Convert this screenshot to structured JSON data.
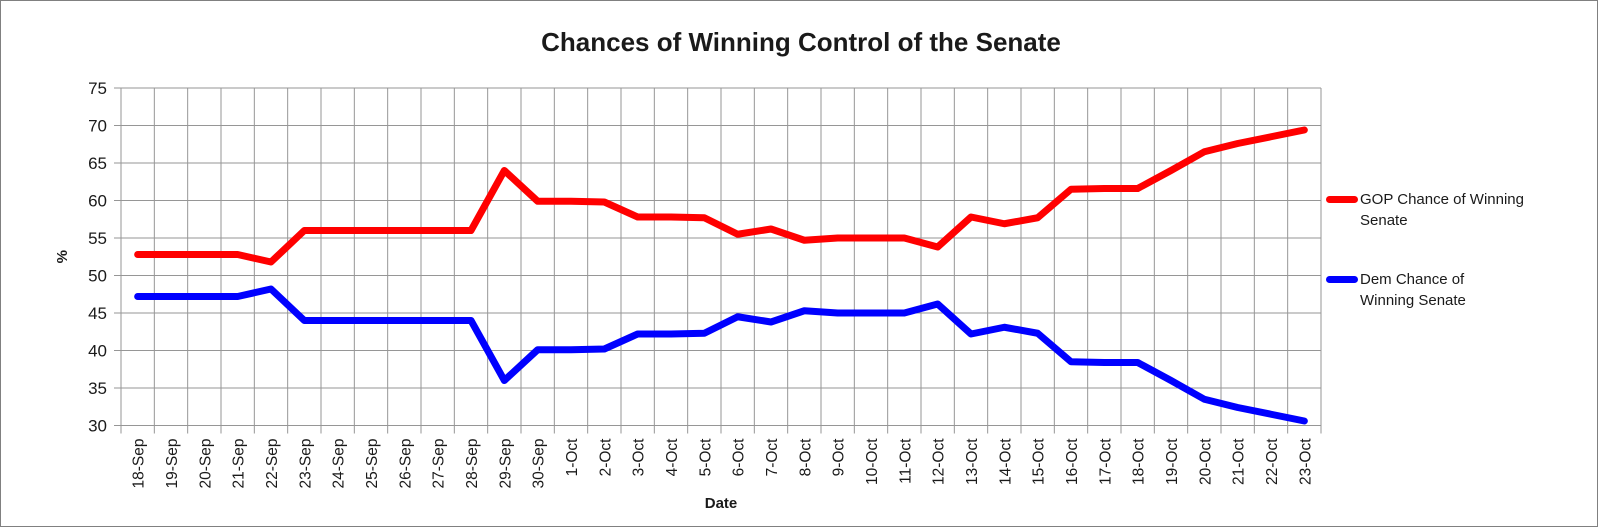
{
  "chart_data": {
    "type": "line",
    "title": "Chances of Winning Control of the Senate",
    "xlabel": "Date",
    "ylabel": "%",
    "ylim": [
      30,
      75
    ],
    "ytick_step": 5,
    "ytick_labels": [
      "75",
      "70",
      "65",
      "60",
      "55",
      "50",
      "45",
      "40",
      "35",
      "30"
    ],
    "grid": true,
    "legend_position": "right",
    "x": [
      "18-Sep",
      "19-Sep",
      "20-Sep",
      "21-Sep",
      "22-Sep",
      "23-Sep",
      "24-Sep",
      "25-Sep",
      "26-Sep",
      "27-Sep",
      "28-Sep",
      "29-Sep",
      "30-Sep",
      "1-Oct",
      "2-Oct",
      "3-Oct",
      "4-Oct",
      "5-Oct",
      "6-Oct",
      "7-Oct",
      "8-Oct",
      "9-Oct",
      "10-Oct",
      "11-Oct",
      "12-Oct",
      "13-Oct",
      "14-Oct",
      "15-Oct",
      "16-Oct",
      "17-Oct",
      "18-Oct",
      "19-Oct",
      "20-Oct",
      "21-Oct",
      "22-Oct",
      "23-Oct"
    ],
    "series": [
      {
        "name": "GOP Chance of Winning Senate",
        "legend_label": "GOP Chance of Winning\nSenate",
        "color": "#ff0000",
        "values": [
          52.8,
          52.8,
          52.8,
          52.8,
          51.8,
          56,
          56,
          56,
          56,
          56,
          56,
          64,
          59.9,
          59.9,
          59.8,
          57.8,
          57.8,
          57.7,
          55.5,
          56.2,
          54.7,
          55,
          55,
          55,
          53.8,
          57.8,
          56.9,
          57.7,
          61.5,
          61.6,
          61.6,
          64,
          66.5,
          67.6,
          68.5,
          69.4
        ]
      },
      {
        "name": "Dem Chance of Winning Senate",
        "legend_label": "Dem Chance of\nWinning Senate",
        "color": "#0000ff",
        "values": [
          47.2,
          47.2,
          47.2,
          47.2,
          48.2,
          44,
          44,
          44,
          44,
          44,
          44,
          36,
          40.1,
          40.1,
          40.2,
          42.2,
          42.2,
          42.3,
          44.5,
          43.8,
          45.3,
          45,
          45,
          45,
          46.2,
          42.2,
          43.1,
          42.3,
          38.5,
          38.4,
          38.4,
          36,
          33.5,
          32.4,
          31.5,
          30.6
        ]
      }
    ],
    "grid_color": "#969696"
  }
}
